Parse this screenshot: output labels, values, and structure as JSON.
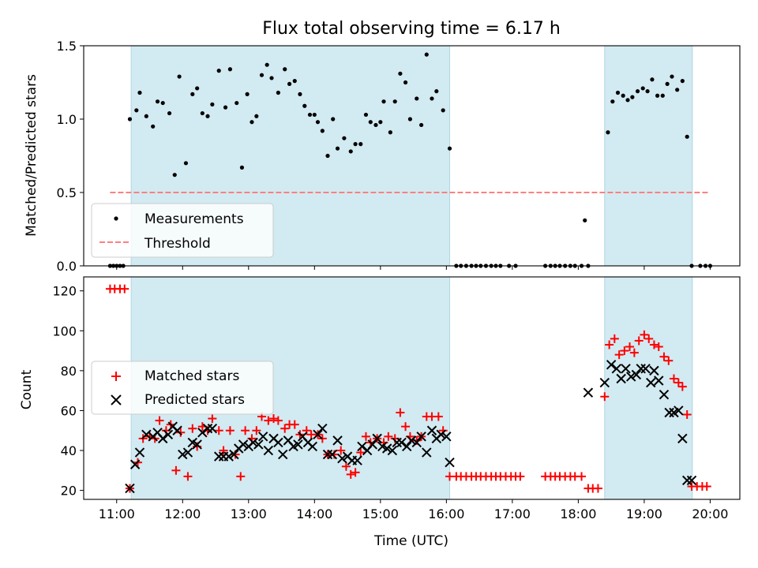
{
  "chart_data": {
    "title": "Flux total observing time = 6.17 h",
    "xlabel": "Time (UTC)",
    "x_unit": "hours UTC",
    "xlim": [
      10.5,
      20.45
    ],
    "x_ticks": [
      11,
      12,
      13,
      14,
      15,
      16,
      17,
      18,
      19,
      20
    ],
    "x_tick_labels": [
      "11:00",
      "12:00",
      "13:00",
      "14:00",
      "15:00",
      "16:00",
      "17:00",
      "18:00",
      "19:00",
      "20:00"
    ],
    "shaded_intervals": [
      [
        11.22,
        16.05
      ],
      [
        18.4,
        19.73
      ]
    ],
    "shade_color": "#add8e6",
    "panels": [
      {
        "type": "scatter",
        "ylabel": "Matched/Predicted stars",
        "ylim": [
          0,
          1.5
        ],
        "y_ticks": [
          0,
          0.5,
          1.0,
          1.5
        ],
        "y_tick_labels": [
          "0.0",
          "0.5",
          "1.0",
          "1.5"
        ],
        "legend": {
          "placement": "lower-left",
          "entries": [
            "Measurements",
            "Threshold"
          ]
        },
        "threshold": {
          "name": "Threshold",
          "value": 0.5,
          "x_range": [
            10.9,
            20.0
          ],
          "color": "#ff7f7f",
          "style": "dashed"
        },
        "series": [
          {
            "name": "Measurements",
            "marker": "dot",
            "color": "#000000",
            "x": [
              10.9,
              10.95,
              11.0,
              11.05,
              11.1,
              11.2,
              11.3,
              11.35,
              11.45,
              11.55,
              11.62,
              11.7,
              11.8,
              11.88,
              11.95,
              12.05,
              12.15,
              12.22,
              12.3,
              12.38,
              12.45,
              12.55,
              12.65,
              12.72,
              12.82,
              12.9,
              12.98,
              13.05,
              13.12,
              13.2,
              13.28,
              13.35,
              13.45,
              13.55,
              13.62,
              13.7,
              13.78,
              13.85,
              13.93,
              14.0,
              14.05,
              14.12,
              14.2,
              14.28,
              14.35,
              14.45,
              14.55,
              14.62,
              14.7,
              14.78,
              14.85,
              14.93,
              15.0,
              15.05,
              15.15,
              15.22,
              15.3,
              15.38,
              15.45,
              15.55,
              15.62,
              15.7,
              15.78,
              15.85,
              15.95,
              16.05,
              16.15,
              16.22,
              16.3,
              16.38,
              16.45,
              16.52,
              16.6,
              16.68,
              16.75,
              16.82,
              16.95,
              17.05,
              17.5,
              17.58,
              17.65,
              17.72,
              17.8,
              17.88,
              17.95,
              18.05,
              18.1,
              18.15,
              18.45,
              18.52,
              18.6,
              18.68,
              18.75,
              18.82,
              18.9,
              18.98,
              19.05,
              19.12,
              19.2,
              19.28,
              19.35,
              19.42,
              19.5,
              19.58,
              19.65,
              19.72,
              19.85,
              19.93,
              20.0
            ],
            "y": [
              0.0,
              0.0,
              0.0,
              0.0,
              0.0,
              1.0,
              1.06,
              1.18,
              1.02,
              0.95,
              1.12,
              1.11,
              1.04,
              0.62,
              1.29,
              0.7,
              1.17,
              1.21,
              1.04,
              1.02,
              1.1,
              1.33,
              1.08,
              1.34,
              1.11,
              0.67,
              1.17,
              0.98,
              1.02,
              1.3,
              1.37,
              1.28,
              1.18,
              1.34,
              1.24,
              1.26,
              1.17,
              1.09,
              1.03,
              1.03,
              0.98,
              0.92,
              0.75,
              1.0,
              0.8,
              0.87,
              0.78,
              0.83,
              0.83,
              1.03,
              0.98,
              0.96,
              0.98,
              1.12,
              0.91,
              1.12,
              1.31,
              1.25,
              1.0,
              1.14,
              0.96,
              1.44,
              1.14,
              1.19,
              1.06,
              0.8,
              0.0,
              0.0,
              0.0,
              0.0,
              0.0,
              0.0,
              0.0,
              0.0,
              0.0,
              0.0,
              0.0,
              0.0,
              0.0,
              0.0,
              0.0,
              0.0,
              0.0,
              0.0,
              0.0,
              0.0,
              0.31,
              0.0,
              0.91,
              1.12,
              1.18,
              1.16,
              1.13,
              1.15,
              1.19,
              1.21,
              1.19,
              1.27,
              1.16,
              1.16,
              1.24,
              1.29,
              1.2,
              1.26,
              0.88,
              0.0,
              0.0,
              0.0,
              0.0
            ]
          }
        ]
      },
      {
        "type": "scatter",
        "ylabel": "Count",
        "ylim": [
          15.5,
          127
        ],
        "y_ticks": [
          20,
          40,
          60,
          80,
          100,
          120
        ],
        "y_tick_labels": [
          "20",
          "40",
          "60",
          "80",
          "100",
          "120"
        ],
        "legend": {
          "placement": "center-left",
          "entries": [
            "Matched stars",
            "Predicted stars"
          ]
        },
        "series": [
          {
            "name": "Matched stars",
            "marker": "plus",
            "color": "#ff0000",
            "x": [
              10.9,
              10.97,
              11.05,
              11.12,
              11.2,
              11.32,
              11.4,
              11.5,
              11.58,
              11.65,
              11.75,
              11.82,
              11.9,
              11.97,
              12.08,
              12.15,
              12.22,
              12.3,
              12.38,
              12.45,
              12.55,
              12.62,
              12.72,
              12.8,
              12.88,
              12.95,
              13.05,
              13.12,
              13.2,
              13.3,
              13.38,
              13.45,
              13.55,
              13.62,
              13.7,
              13.78,
              13.88,
              13.95,
              14.05,
              14.12,
              14.2,
              14.3,
              14.4,
              14.48,
              14.55,
              14.62,
              14.7,
              14.78,
              14.85,
              14.95,
              15.05,
              15.12,
              15.22,
              15.3,
              15.38,
              15.45,
              15.55,
              15.62,
              15.7,
              15.78,
              15.88,
              15.95,
              16.05,
              16.15,
              16.22,
              16.3,
              16.38,
              16.45,
              16.52,
              16.6,
              16.68,
              16.75,
              16.82,
              16.9,
              16.98,
              17.05,
              17.12,
              17.5,
              17.58,
              17.65,
              17.72,
              17.8,
              17.88,
              17.95,
              18.05,
              18.15,
              18.22,
              18.3,
              18.4,
              18.47,
              18.55,
              18.62,
              18.7,
              18.78,
              18.85,
              18.92,
              19.0,
              19.07,
              19.15,
              19.22,
              19.3,
              19.37,
              19.45,
              19.52,
              19.58,
              19.65,
              19.72,
              19.8,
              19.88,
              19.95
            ],
            "y": [
              121,
              121,
              121,
              121,
              21,
              34,
              46,
              47,
              46,
              55,
              50,
              53,
              30,
              49,
              27,
              51,
              42,
              52,
              50,
              56,
              50,
              40,
              50,
              38,
              27,
              50,
              46,
              50,
              57,
              55,
              56,
              55,
              51,
              53,
              53,
              48,
              50,
              48,
              48,
              46,
              38,
              38,
              40,
              32,
              28,
              29,
              39,
              47,
              44,
              46,
              44,
              47,
              46,
              59,
              52,
              47,
              45,
              47,
              57,
              57,
              57,
              50,
              27,
              27,
              27,
              27,
              27,
              27,
              27,
              27,
              27,
              27,
              27,
              27,
              27,
              27,
              27,
              27,
              27,
              27,
              27,
              27,
              27,
              27,
              27,
              21,
              21,
              21,
              67,
              93,
              96,
              88,
              90,
              92,
              89,
              95,
              98,
              96,
              93,
              92,
              87,
              85,
              76,
              74,
              72,
              58,
              22,
              22,
              22,
              22
            ]
          },
          {
            "name": "Predicted stars",
            "marker": "x",
            "color": "#000000",
            "x": [
              11.2,
              11.28,
              11.35,
              11.45,
              11.55,
              11.62,
              11.7,
              11.78,
              11.85,
              11.92,
              12.0,
              12.08,
              12.15,
              12.22,
              12.3,
              12.38,
              12.45,
              12.55,
              12.62,
              12.7,
              12.78,
              12.85,
              12.92,
              13.0,
              13.07,
              13.15,
              13.22,
              13.3,
              13.38,
              13.45,
              13.52,
              13.6,
              13.68,
              13.75,
              13.82,
              13.9,
              13.97,
              14.05,
              14.12,
              14.2,
              14.27,
              14.35,
              14.42,
              14.5,
              14.57,
              14.65,
              14.72,
              14.8,
              14.88,
              14.95,
              15.03,
              15.1,
              15.18,
              15.25,
              15.32,
              15.4,
              15.47,
              15.55,
              15.62,
              15.7,
              15.78,
              15.85,
              15.92,
              16.0,
              16.05,
              18.15,
              18.4,
              18.5,
              18.58,
              18.65,
              18.72,
              18.8,
              18.88,
              18.95,
              19.02,
              19.1,
              19.15,
              19.22,
              19.3,
              19.38,
              19.45,
              19.52,
              19.58,
              19.65,
              19.72
            ],
            "y": [
              21,
              33,
              39,
              48,
              47,
              49,
              46,
              48,
              52,
              50,
              38,
              39,
              44,
              43,
              49,
              51,
              51,
              37,
              37,
              37,
              38,
              41,
              43,
              42,
              44,
              43,
              47,
              40,
              46,
              44,
              38,
              45,
              42,
              43,
              47,
              44,
              42,
              48,
              51,
              38,
              38,
              45,
              36,
              37,
              35,
              35,
              42,
              40,
              43,
              46,
              42,
              41,
              40,
              44,
              44,
              42,
              45,
              44,
              47,
              39,
              50,
              46,
              48,
              47,
              34,
              69,
              74,
              83,
              81,
              76,
              81,
              77,
              78,
              81,
              81,
              74,
              80,
              75,
              68,
              59,
              59,
              60,
              46,
              25,
              25
            ]
          }
        ]
      }
    ]
  }
}
